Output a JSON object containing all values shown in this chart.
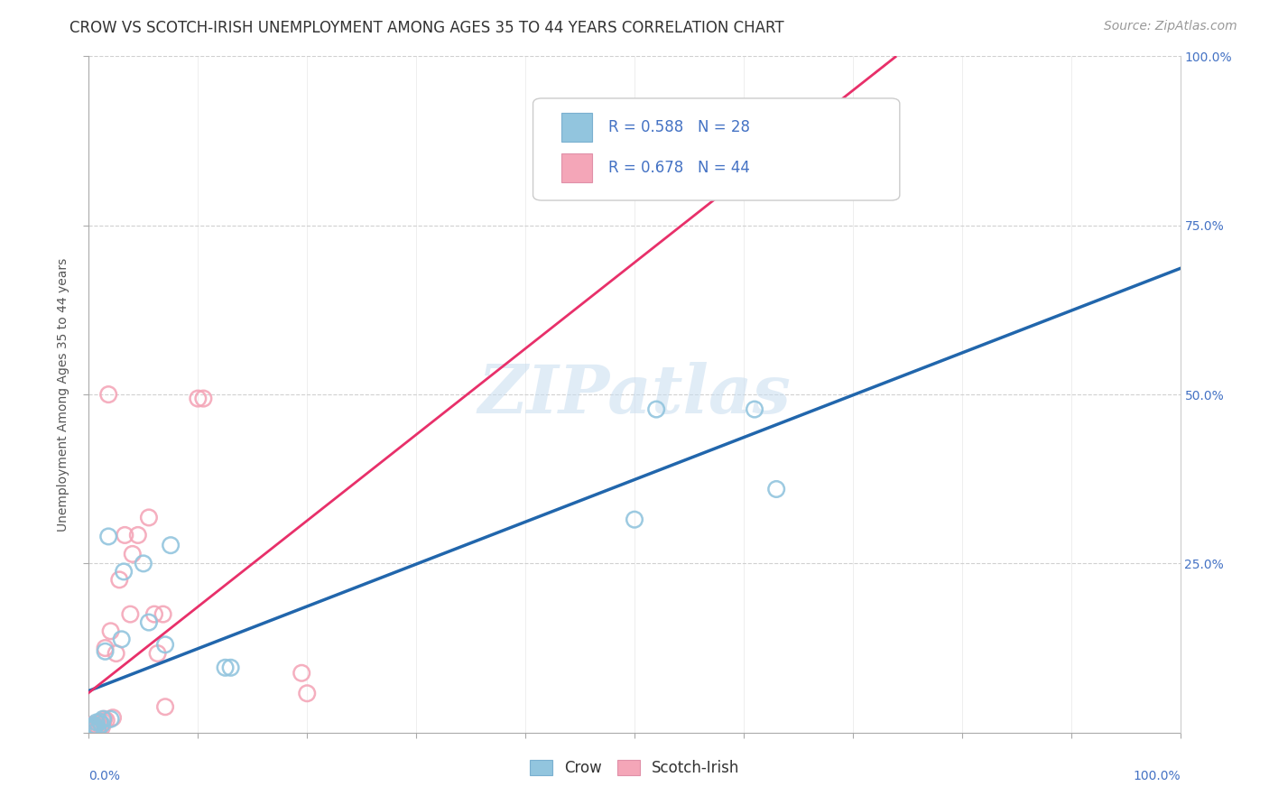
{
  "title": "CROW VS SCOTCH-IRISH UNEMPLOYMENT AMONG AGES 35 TO 44 YEARS CORRELATION CHART",
  "source": "Source: ZipAtlas.com",
  "ylabel": "Unemployment Among Ages 35 to 44 years",
  "xlim": [
    0.0,
    1.0
  ],
  "ylim": [
    0.0,
    1.0
  ],
  "crow_color": "#92c5de",
  "scotch_irish_color": "#f4a6b8",
  "crow_line_color": "#2166ac",
  "scotch_irish_line_color": "#e8306a",
  "crow_R": 0.588,
  "crow_N": 28,
  "scotch_irish_R": 0.678,
  "scotch_irish_N": 44,
  "crow_points_x": [
    0.001,
    0.002,
    0.002,
    0.003,
    0.003,
    0.004,
    0.005,
    0.006,
    0.007,
    0.008,
    0.01,
    0.012,
    0.013,
    0.015,
    0.018,
    0.02,
    0.03,
    0.032,
    0.05,
    0.055,
    0.07,
    0.075,
    0.125,
    0.13,
    0.5,
    0.52,
    0.61,
    0.63
  ],
  "crow_points_y": [
    0.004,
    0.004,
    0.006,
    0.008,
    0.008,
    0.01,
    0.008,
    0.01,
    0.015,
    0.004,
    0.016,
    0.012,
    0.02,
    0.12,
    0.29,
    0.02,
    0.138,
    0.238,
    0.25,
    0.163,
    0.13,
    0.277,
    0.096,
    0.096,
    0.315,
    0.478,
    0.478,
    0.36
  ],
  "scotch_irish_points_x": [
    0.001,
    0.001,
    0.002,
    0.002,
    0.003,
    0.003,
    0.003,
    0.004,
    0.004,
    0.004,
    0.005,
    0.005,
    0.005,
    0.006,
    0.006,
    0.007,
    0.008,
    0.008,
    0.009,
    0.01,
    0.011,
    0.012,
    0.013,
    0.014,
    0.015,
    0.016,
    0.018,
    0.02,
    0.022,
    0.025,
    0.028,
    0.033,
    0.038,
    0.04,
    0.045,
    0.055,
    0.06,
    0.063,
    0.068,
    0.07,
    0.1,
    0.105,
    0.195,
    0.2
  ],
  "scotch_irish_points_y": [
    0.004,
    0.008,
    0.004,
    0.008,
    0.004,
    0.008,
    0.01,
    0.004,
    0.012,
    0.004,
    0.002,
    0.006,
    0.01,
    0.004,
    0.006,
    0.004,
    0.01,
    0.008,
    0.004,
    0.012,
    0.012,
    0.008,
    0.016,
    0.02,
    0.125,
    0.018,
    0.5,
    0.15,
    0.022,
    0.117,
    0.226,
    0.292,
    0.175,
    0.264,
    0.292,
    0.318,
    0.175,
    0.117,
    0.175,
    0.038,
    0.494,
    0.494,
    0.088,
    0.058
  ],
  "background_color": "#ffffff",
  "grid_color": "#d0d0d0",
  "watermark_text": "ZIPatlas",
  "legend_crow_label": "Crow",
  "legend_scotch_label": "Scotch-Irish",
  "title_fontsize": 12,
  "axis_label_fontsize": 10,
  "legend_fontsize": 12,
  "tick_fontsize": 10,
  "source_fontsize": 10,
  "ytick_positions": [
    0.0,
    0.25,
    0.5,
    0.75,
    1.0
  ],
  "ytick_labels": [
    "",
    "25.0%",
    "50.0%",
    "75.0%",
    "100.0%"
  ],
  "xtick_bottom_left": "0.0%",
  "xtick_bottom_right": "100.0%"
}
